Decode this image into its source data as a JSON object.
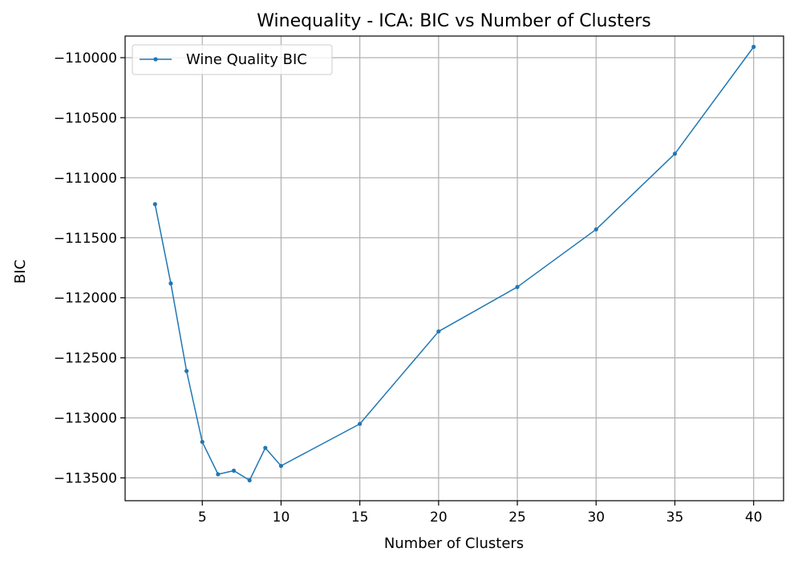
{
  "chart_data": {
    "type": "line",
    "title": "Winequality - ICA: BIC vs Number of Clusters",
    "xlabel": "Number of Clusters",
    "ylabel": "BIC",
    "xlim": [
      0.1,
      41.9
    ],
    "ylim": [
      -113690,
      -109820
    ],
    "xticks": [
      5,
      10,
      15,
      20,
      25,
      30,
      35,
      40
    ],
    "yticks": [
      -110000,
      -110500,
      -111000,
      -111500,
      -112000,
      -112500,
      -113000,
      -113500
    ],
    "grid": true,
    "legend_position": "top-left",
    "series": [
      {
        "name": "Wine Quality BIC",
        "color": "#1f77b4",
        "x": [
          2,
          3,
          4,
          5,
          6,
          7,
          8,
          9,
          10,
          15,
          20,
          25,
          30,
          35,
          40
        ],
        "y": [
          -111220,
          -111880,
          -112610,
          -113200,
          -113470,
          -113440,
          -113520,
          -113250,
          -113400,
          -113050,
          -112280,
          -111910,
          -111430,
          -110800,
          -109910
        ]
      }
    ]
  }
}
